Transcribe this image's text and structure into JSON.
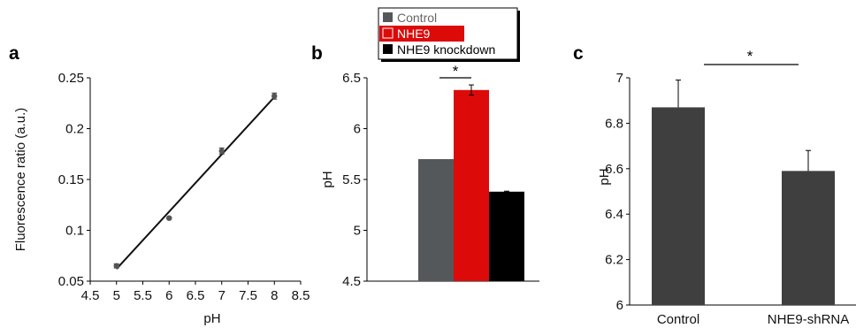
{
  "chart_data": [
    {
      "panel": "a",
      "type": "scatter",
      "title": "",
      "xlabel": "pH",
      "ylabel": "Fluorescence ratio (a.u.)",
      "xlim": [
        4.5,
        8.5
      ],
      "ylim": [
        0.05,
        0.25
      ],
      "xticks": [
        "4.5",
        "5",
        "5.5",
        "6",
        "6.5",
        "7",
        "7.5",
        "8",
        "8.5"
      ],
      "yticks": [
        "0.05",
        "0.1",
        "0.15",
        "0.2",
        "0.25"
      ],
      "points": [
        {
          "x": 5,
          "y": 0.065,
          "err": 0.002
        },
        {
          "x": 6,
          "y": 0.112,
          "err": 0.001
        },
        {
          "x": 7,
          "y": 0.178,
          "err": 0.003
        },
        {
          "x": 8,
          "y": 0.232,
          "err": 0.003
        }
      ],
      "fit_line": {
        "x": [
          5,
          8
        ],
        "y": [
          0.062,
          0.231
        ]
      },
      "marker_color": "#555555",
      "grid": false
    },
    {
      "panel": "b",
      "type": "bar",
      "title": "",
      "xlabel": "",
      "ylabel": "pH",
      "ylim": [
        4.5,
        6.5
      ],
      "yticks": [
        "4.5",
        "5",
        "5.5",
        "6",
        "6.5"
      ],
      "series": [
        {
          "name": "Control",
          "value": 5.7,
          "err": 0,
          "color": "#55585a"
        },
        {
          "name": "NHE9",
          "value": 6.38,
          "err": 0.05,
          "color": "#dd0a0a",
          "name_color": "#ffffff"
        },
        {
          "name": "NHE9 knockdown",
          "value": 5.38,
          "err": 0.005,
          "color": "#000000"
        }
      ],
      "legend": {
        "position": "top",
        "entries": [
          "Control",
          "NHE9",
          "NHE9 knockdown"
        ]
      },
      "significance": {
        "label": "*",
        "from": "Control",
        "to": "NHE9"
      },
      "grid": false
    },
    {
      "panel": "c",
      "type": "bar",
      "title": "",
      "xlabel": "",
      "ylabel": "pH",
      "ylim": [
        6,
        7
      ],
      "yticks": [
        "6",
        "6.2",
        "6.4",
        "6.6",
        "6.8",
        "7"
      ],
      "categories": [
        "Control",
        "NHE9-shRNA"
      ],
      "values": [
        6.87,
        6.59
      ],
      "errors": [
        0.12,
        0.09
      ],
      "bar_color": "#3f3f3f",
      "significance": {
        "label": "*"
      },
      "grid": false
    }
  ]
}
